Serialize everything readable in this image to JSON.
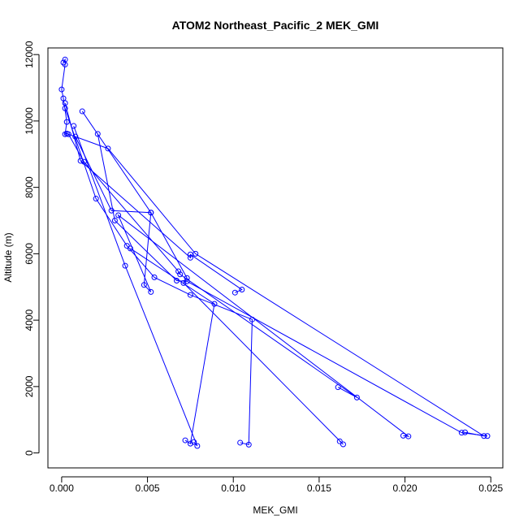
{
  "chart_data": {
    "type": "line",
    "title": "ATOM2 Northeast_Pacific_2 MEK_GMI",
    "xlabel": "MEK_GMI",
    "ylabel": "Altitude (m)",
    "xlim": [
      -0.0008,
      0.0257
    ],
    "ylim": [
      -450,
      12200
    ],
    "x_ticks": [
      0.0,
      0.005,
      0.01,
      0.015,
      0.02,
      0.025
    ],
    "x_tick_labels": [
      "0.000",
      "0.005",
      "0.010",
      "0.015",
      "0.020",
      "0.025"
    ],
    "y_ticks": [
      0,
      2000,
      4000,
      6000,
      8000,
      10000,
      12000
    ],
    "y_tick_labels": [
      "0",
      "2000",
      "4000",
      "6000",
      "8000",
      "10000",
      "12000"
    ],
    "grid": false,
    "legend": "none",
    "series_color": "#0000ff",
    "series": [
      {
        "x": [
          0.0001,
          0.0002,
          0.0002,
          0.0,
          0.0001,
          0.0003,
          0.0002,
          0.0003,
          0.0027,
          0.0078,
          0.0246,
          0.0235
        ],
        "y": [
          11760,
          11850,
          11700,
          10950,
          10680,
          9970,
          9600,
          9620,
          9170,
          6000,
          510,
          620
        ]
      },
      {
        "x": [
          0.0021,
          0.0031,
          0.0067,
          0.0073,
          0.0233,
          0.0248
        ],
        "y": [
          9610,
          7000,
          5190,
          5170,
          610,
          510
        ]
      },
      {
        "x": [
          0.0002,
          0.0011,
          0.0075,
          0.0075,
          0.0105,
          0.0101
        ],
        "y": [
          10540,
          8800,
          5880,
          5980,
          4920,
          4830
        ]
      },
      {
        "x": [
          0.0004,
          0.0013,
          0.0068,
          0.0069,
          0.0172,
          0.0161
        ],
        "y": [
          9600,
          8770,
          5470,
          5380,
          1670,
          1980
        ]
      },
      {
        "x": [
          0.0008,
          0.0029,
          0.0052,
          0.0048,
          0.0052,
          0.0033,
          0.0202,
          0.0199
        ],
        "y": [
          9530,
          7300,
          7240,
          5060,
          4850,
          7160,
          500,
          520
        ]
      },
      {
        "x": [
          0.0012,
          0.0052,
          0.0073,
          0.0071,
          0.0164,
          0.0162
        ],
        "y": [
          10290,
          7240,
          5270,
          5120,
          260,
          350
        ]
      },
      {
        "x": [
          0.0002,
          0.002,
          0.0038,
          0.0054,
          0.0075,
          0.0111,
          0.0109,
          0.0104
        ],
        "y": [
          10380,
          7660,
          6240,
          5290,
          4760,
          4020,
          250,
          310
        ]
      },
      {
        "x": [
          0.0007,
          0.0037,
          0.0079,
          0.0077
        ],
        "y": [
          9850,
          5640,
          210,
          330
        ]
      },
      {
        "x": [
          0.004,
          0.0089,
          0.0075,
          0.0072
        ],
        "y": [
          6160,
          4490,
          280,
          380
        ]
      }
    ]
  }
}
